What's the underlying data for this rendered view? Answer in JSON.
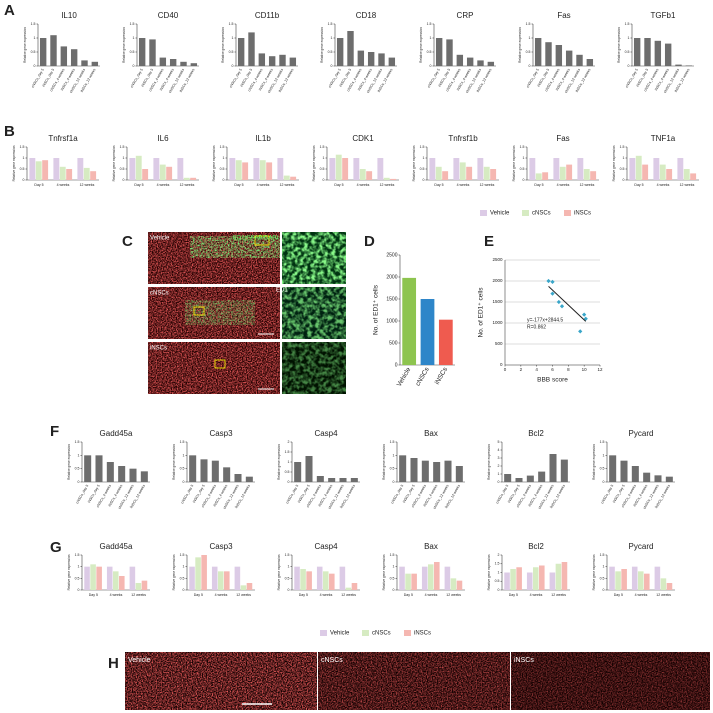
{
  "panel_labels": [
    "A",
    "B",
    "C",
    "D",
    "E",
    "F",
    "G",
    "H"
  ],
  "bar_color": "#6d6d6d",
  "legend": {
    "names": [
      "Vehicle",
      "cNSCs",
      "iNSCs"
    ],
    "colors": [
      "#dccbe6",
      "#d6ebc2",
      "#f5b7b1"
    ]
  },
  "images": {
    "C": {
      "rows": [
        "Vehicle",
        "cNSCs",
        "iNSCs"
      ],
      "overlay": "ED1/GFAP/DAPI",
      "zoom": "ED1"
    },
    "H": [
      "Vehicle",
      "cNSCs",
      "iNSCs"
    ]
  },
  "chart_data": [
    {
      "type": "bar",
      "title": "IL10",
      "y_label": "Relative gene expression",
      "categories": [
        "cNSCs_day 5",
        "iNSCs_day 5",
        "cNSCs_4 weeks",
        "iNSCs_4 weeks",
        "cNSCs_12 weeks",
        "iNSCs_12 weeks"
      ],
      "values": [
        1.0,
        1.1,
        0.7,
        0.6,
        0.2,
        0.15
      ],
      "ylim": [
        0,
        1.5
      ],
      "yticks": [
        0,
        0.5,
        1,
        1.5
      ]
    },
    {
      "type": "bar",
      "title": "CD40",
      "y_label": "Relative gene expression",
      "categories": [
        "cNSCs_day 5",
        "iNSCs_day 5",
        "cNSCs_4 weeks",
        "iNSCs_4 weeks",
        "cNSCs_12 weeks",
        "iNSCs_12 weeks"
      ],
      "values": [
        1.0,
        0.95,
        0.3,
        0.25,
        0.15,
        0.1
      ],
      "ylim": [
        0,
        1.5
      ],
      "yticks": [
        0,
        0.5,
        1,
        1.5
      ]
    },
    {
      "type": "bar",
      "title": "CD11b",
      "y_label": "Relative gene expression",
      "categories": [
        "cNSCs_day 5",
        "iNSCs_day 5",
        "cNSCs_4 weeks",
        "iNSCs_4 weeks",
        "cNSCs_12 weeks",
        "iNSCs_12 weeks"
      ],
      "values": [
        1.0,
        1.2,
        0.45,
        0.35,
        0.4,
        0.3
      ],
      "ylim": [
        0,
        1.5
      ],
      "yticks": [
        0,
        0.5,
        1,
        1.5
      ]
    },
    {
      "type": "bar",
      "title": "CD18",
      "y_label": "Relative gene expression",
      "categories": [
        "cNSCs_day 5",
        "iNSCs_day 5",
        "cNSCs_4 weeks",
        "iNSCs_4 weeks",
        "cNSCs_12 weeks",
        "iNSCs_12 weeks"
      ],
      "values": [
        1.0,
        1.25,
        0.55,
        0.5,
        0.45,
        0.3
      ],
      "ylim": [
        0,
        1.5
      ],
      "yticks": [
        0,
        0.5,
        1,
        1.5
      ]
    },
    {
      "type": "bar",
      "title": "CRP",
      "y_label": "Relative gene expression",
      "categories": [
        "cNSCs_day 5",
        "iNSCs_day 5",
        "cNSCs_4 weeks",
        "iNSCs_4 weeks",
        "cNSCs_12 weeks",
        "iNSCs_12 weeks"
      ],
      "values": [
        1.0,
        0.95,
        0.4,
        0.3,
        0.2,
        0.15
      ],
      "ylim": [
        0,
        1.5
      ],
      "yticks": [
        0,
        0.5,
        1,
        1.5
      ]
    },
    {
      "type": "bar",
      "title": "Fas",
      "y_label": "Relative gene expression",
      "categories": [
        "cNSCs_day 5",
        "iNSCs_day 5",
        "cNSCs_4 weeks",
        "iNSCs_4 weeks",
        "cNSCs_12 weeks",
        "iNSCs_12 weeks"
      ],
      "values": [
        1.0,
        0.85,
        0.75,
        0.55,
        0.4,
        0.25
      ],
      "ylim": [
        0,
        1.5
      ],
      "yticks": [
        0,
        0.5,
        1,
        1.5
      ]
    },
    {
      "type": "bar",
      "title": "TGFb1",
      "y_label": "Relative gene expression",
      "categories": [
        "cNSCs_day 5",
        "iNSCs_day 5",
        "cNSCs_4 weeks",
        "iNSCs_4 weeks",
        "cNSCs_12 weeks",
        "iNSCs_12 weeks"
      ],
      "values": [
        1.0,
        1.0,
        0.9,
        0.8,
        0.05,
        0.02
      ],
      "ylim": [
        0,
        1.5
      ],
      "yticks": [
        0,
        0.5,
        1,
        1.5
      ]
    },
    {
      "type": "bar",
      "title": "Tnfrsf1a",
      "y_label": "Relative gene expression",
      "categories": [
        "Day 5",
        "4 weeks",
        "12 weeks"
      ],
      "series": [
        {
          "values": [
            1,
            1,
            1
          ]
        },
        {
          "values": [
            0.85,
            0.6,
            0.55
          ]
        },
        {
          "values": [
            0.9,
            0.5,
            0.4
          ]
        }
      ],
      "ylim": [
        0,
        1.5
      ],
      "yticks": [
        0,
        0.5,
        1,
        1.5
      ]
    },
    {
      "type": "bar",
      "title": "IL6",
      "y_label": "Relative gene expression",
      "categories": [
        "Day 5",
        "4 weeks",
        "12 weeks"
      ],
      "series": [
        {
          "values": [
            1,
            1,
            1
          ]
        },
        {
          "values": [
            1.1,
            0.7,
            0.1
          ]
        },
        {
          "values": [
            0.5,
            0.6,
            0.1
          ]
        }
      ],
      "ylim": [
        0,
        1.5
      ],
      "yticks": [
        0,
        0.5,
        1,
        1.5
      ]
    },
    {
      "type": "bar",
      "title": "IL1b",
      "y_label": "Relative gene expression",
      "categories": [
        "Day 5",
        "4 weeks",
        "12 weeks"
      ],
      "series": [
        {
          "values": [
            1,
            1,
            1
          ]
        },
        {
          "values": [
            0.9,
            0.9,
            0.2
          ]
        },
        {
          "values": [
            0.8,
            0.8,
            0.15
          ]
        }
      ],
      "ylim": [
        0,
        1.5
      ],
      "yticks": [
        0,
        0.5,
        1,
        1.5
      ]
    },
    {
      "type": "bar",
      "title": "CDK1",
      "y_label": "Relative gene expression",
      "categories": [
        "Day 5",
        "4 weeks",
        "12 weeks"
      ],
      "series": [
        {
          "values": [
            1,
            1,
            1
          ]
        },
        {
          "values": [
            1.15,
            0.5,
            0.1
          ]
        },
        {
          "values": [
            1.0,
            0.4,
            0.05
          ]
        }
      ],
      "ylim": [
        0,
        1.5
      ],
      "yticks": [
        0,
        0.5,
        1,
        1.5
      ]
    },
    {
      "type": "bar",
      "title": "Tnfrsf1b",
      "y_label": "Relative gene expression",
      "categories": [
        "Day 5",
        "4 weeks",
        "12 weeks"
      ],
      "series": [
        {
          "values": [
            1,
            1,
            1
          ]
        },
        {
          "values": [
            0.6,
            0.8,
            0.6
          ]
        },
        {
          "values": [
            0.4,
            0.6,
            0.5
          ]
        }
      ],
      "ylim": [
        0,
        1.5
      ],
      "yticks": [
        0,
        0.5,
        1,
        1.5
      ]
    },
    {
      "type": "bar",
      "title": "Fas",
      "y_label": "Relative gene expression",
      "categories": [
        "Day 5",
        "4 weeks",
        "12 weeks"
      ],
      "series": [
        {
          "values": [
            1,
            1,
            1
          ]
        },
        {
          "values": [
            0.3,
            0.6,
            0.5
          ]
        },
        {
          "values": [
            0.35,
            0.7,
            0.4
          ]
        }
      ],
      "ylim": [
        0,
        1.5
      ],
      "yticks": [
        0,
        0.5,
        1,
        1.5
      ]
    },
    {
      "type": "bar",
      "title": "TNF1a",
      "y_label": "Relative gene expression",
      "categories": [
        "Day 5",
        "4 weeks",
        "12 weeks"
      ],
      "series": [
        {
          "values": [
            1,
            1,
            1
          ]
        },
        {
          "values": [
            1.1,
            0.7,
            0.5
          ]
        },
        {
          "values": [
            0.7,
            0.5,
            0.3
          ]
        }
      ],
      "ylim": [
        0,
        1.5
      ],
      "yticks": [
        0,
        0.5,
        1,
        1.5
      ]
    },
    {
      "type": "bar",
      "y_label": "No. of ED1⁺ cells",
      "categories": [
        "Vehicle",
        "cNSCs",
        "iNSCs"
      ],
      "values": [
        1980,
        1500,
        1030
      ],
      "colors": [
        "#8dc44f",
        "#2e86c9",
        "#ef5b4f"
      ],
      "ylim": [
        0,
        2500
      ],
      "yticks": [
        0,
        500,
        1000,
        1500,
        2000,
        2500
      ]
    },
    {
      "type": "scatter",
      "x_label": "BBB score",
      "y_label": "No. of ED1⁺ cells",
      "x": [
        5.5,
        6,
        6,
        6.8,
        7.2,
        10,
        10.2,
        9.5
      ],
      "y": [
        2000,
        1980,
        1700,
        1500,
        1400,
        1200,
        1100,
        800
      ],
      "color": "#3aa6c9",
      "fit": {
        "slope": -177,
        "intercept": 2844.5,
        "label": "y=-177x+2844.5",
        "r_label": "R=0.862"
      },
      "xlim": [
        0,
        12
      ],
      "xticks": [
        0,
        2,
        4,
        6,
        8,
        10,
        12
      ],
      "ylim": [
        0,
        2500
      ],
      "yticks": [
        0,
        500,
        1000,
        1500,
        2000,
        2500
      ],
      "grid": true
    },
    {
      "type": "bar",
      "title": "Gadd45a",
      "y_label": "Relative gene expression",
      "categories": [
        "cNSCs_day 5",
        "iNSCs_day 5",
        "cNSCs_4 weeks",
        "iNSCs_4 weeks",
        "cNSCs_12 weeks",
        "iNSCs_12 weeks"
      ],
      "values": [
        1.0,
        1.0,
        0.75,
        0.6,
        0.5,
        0.4
      ],
      "ylim": [
        0,
        1.5
      ],
      "yticks": [
        0,
        0.5,
        1,
        1.5
      ]
    },
    {
      "type": "bar",
      "title": "Casp3",
      "y_label": "Relative gene expression",
      "categories": [
        "cNSCs_day 5",
        "iNSCs_day 5",
        "cNSCs_4 weeks",
        "iNSCs_4 weeks",
        "cNSCs_12 weeks",
        "iNSCs_12 weeks"
      ],
      "values": [
        1.0,
        0.85,
        0.8,
        0.55,
        0.3,
        0.2
      ],
      "ylim": [
        0,
        1.5
      ],
      "yticks": [
        0,
        0.5,
        1,
        1.5
      ]
    },
    {
      "type": "bar",
      "title": "Casp4",
      "y_label": "Relative gene expression",
      "categories": [
        "cNSCs_day 5",
        "iNSCs_day 5",
        "cNSCs_4 weeks",
        "iNSCs_4 weeks",
        "cNSCs_12 weeks",
        "iNSCs_12 weeks"
      ],
      "values": [
        1.0,
        1.3,
        0.3,
        0.2,
        0.2,
        0.2
      ],
      "ylim": [
        0,
        2
      ],
      "yticks": [
        0,
        0.5,
        1,
        1.5,
        2
      ]
    },
    {
      "type": "bar",
      "title": "Bax",
      "y_label": "Relative gene expression",
      "categories": [
        "cNSCs_day 5",
        "iNSCs_day 5",
        "cNSCs_4 weeks",
        "iNSCs_4 weeks",
        "cNSCs_12 weeks",
        "iNSCs_12 weeks"
      ],
      "values": [
        1.0,
        0.9,
        0.8,
        0.75,
        0.8,
        0.6
      ],
      "ylim": [
        0,
        1.5
      ],
      "yticks": [
        0,
        0.5,
        1,
        1.5
      ]
    },
    {
      "type": "bar",
      "title": "Bcl2",
      "y_label": "Relative gene expression",
      "categories": [
        "cNSCs_day 5",
        "iNSCs_day 5",
        "cNSCs_4 weeks",
        "iNSCs_4 weeks",
        "cNSCs_12 weeks",
        "iNSCs_12 weeks"
      ],
      "values": [
        1.0,
        0.5,
        0.8,
        1.3,
        3.5,
        2.8
      ],
      "ylim": [
        0,
        5
      ],
      "yticks": [
        0,
        1,
        2,
        3,
        4,
        5
      ]
    },
    {
      "type": "bar",
      "title": "Pycard",
      "y_label": "Relative gene expression",
      "categories": [
        "cNSCs_day 5",
        "iNSCs_day 5",
        "cNSCs_4 weeks",
        "iNSCs_4 weeks",
        "cNSCs_12 weeks",
        "iNSCs_12 weeks"
      ],
      "values": [
        1.0,
        0.8,
        0.6,
        0.35,
        0.25,
        0.2
      ],
      "ylim": [
        0,
        1.5
      ],
      "yticks": [
        0,
        0.5,
        1,
        1.5
      ]
    },
    {
      "type": "bar",
      "title": "Gadd45a",
      "y_label": "Relative gene expression",
      "categories": [
        "Day 5",
        "4 weeks",
        "12 weeks"
      ],
      "series": [
        {
          "values": [
            1,
            1,
            1
          ]
        },
        {
          "values": [
            1.1,
            0.8,
            0.3
          ]
        },
        {
          "values": [
            1.0,
            0.6,
            0.4
          ]
        }
      ],
      "ylim": [
        0,
        1.5
      ],
      "yticks": [
        0,
        0.5,
        1,
        1.5
      ]
    },
    {
      "type": "bar",
      "title": "Casp3",
      "y_label": "Relative gene expression",
      "categories": [
        "Day 5",
        "4 weeks",
        "12 weeks"
      ],
      "series": [
        {
          "values": [
            1,
            1,
            1
          ]
        },
        {
          "values": [
            1.4,
            0.8,
            0.2
          ]
        },
        {
          "values": [
            1.5,
            0.8,
            0.3
          ]
        }
      ],
      "ylim": [
        0,
        1.5
      ],
      "yticks": [
        0,
        0.5,
        1,
        1.5
      ]
    },
    {
      "type": "bar",
      "title": "Casp4",
      "y_label": "Relative gene expression",
      "categories": [
        "Day 5",
        "4 weeks",
        "12 weeks"
      ],
      "series": [
        {
          "values": [
            1,
            1,
            1
          ]
        },
        {
          "values": [
            0.9,
            0.8,
            0.1
          ]
        },
        {
          "values": [
            0.8,
            0.7,
            0.3
          ]
        }
      ],
      "ylim": [
        0,
        1.5
      ],
      "yticks": [
        0,
        0.5,
        1,
        1.5
      ]
    },
    {
      "type": "bar",
      "title": "Bax",
      "y_label": "Relative gene expression",
      "categories": [
        "Day 5",
        "4 weeks",
        "12 weeks"
      ],
      "series": [
        {
          "values": [
            1,
            1,
            1
          ]
        },
        {
          "values": [
            0.7,
            1.1,
            0.5
          ]
        },
        {
          "values": [
            0.7,
            1.2,
            0.4
          ]
        }
      ],
      "ylim": [
        0,
        1.5
      ],
      "yticks": [
        0,
        0.5,
        1,
        1.5
      ]
    },
    {
      "type": "bar",
      "title": "Bcl2",
      "y_label": "Relative gene expression",
      "categories": [
        "Day 5",
        "4 weeks",
        "12 weeks"
      ],
      "series": [
        {
          "values": [
            1,
            1,
            1
          ]
        },
        {
          "values": [
            1.2,
            1.3,
            1.5
          ]
        },
        {
          "values": [
            1.3,
            1.4,
            1.6
          ]
        }
      ],
      "ylim": [
        0,
        2
      ],
      "yticks": [
        0,
        0.5,
        1,
        1.5,
        2
      ]
    },
    {
      "type": "bar",
      "title": "Pycard",
      "y_label": "Relative gene expression",
      "categories": [
        "Day 5",
        "4 weeks",
        "12 weeks"
      ],
      "series": [
        {
          "values": [
            1,
            1,
            1
          ]
        },
        {
          "values": [
            0.8,
            0.8,
            0.5
          ]
        },
        {
          "values": [
            0.9,
            0.7,
            0.3
          ]
        }
      ],
      "ylim": [
        0,
        1.5
      ],
      "yticks": [
        0,
        0.5,
        1,
        1.5
      ]
    }
  ]
}
